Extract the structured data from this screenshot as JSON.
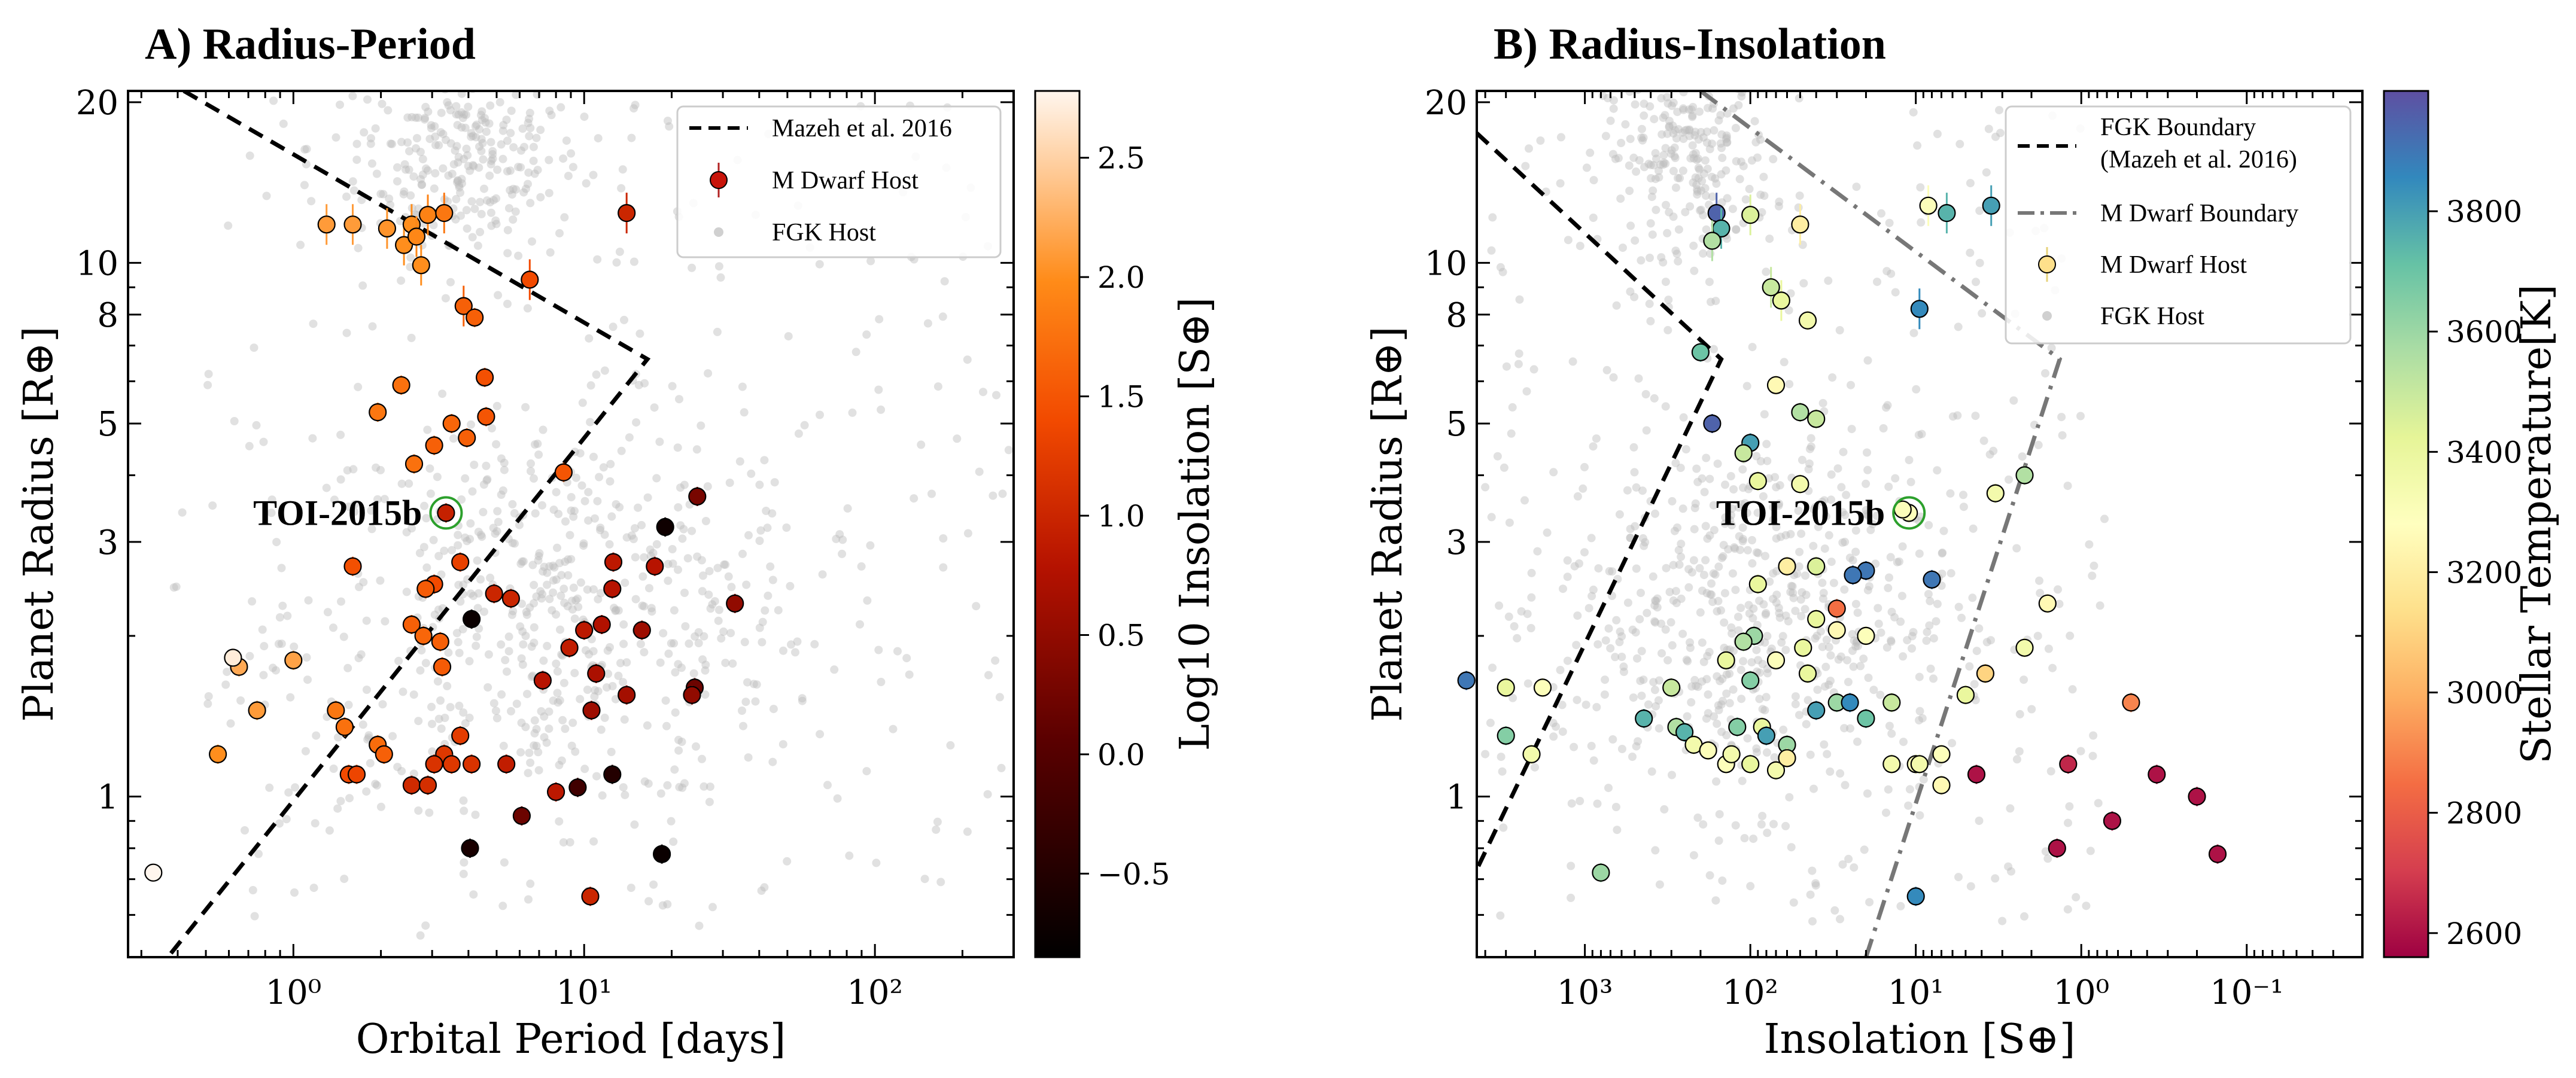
{
  "chart_data": [
    {
      "type": "scatter",
      "title": "A) Radius-Period",
      "xlabel": "Orbital Period [days]",
      "ylabel": "Planet Radius [R⊕]",
      "xscale": "log",
      "yscale": "log",
      "xlim": [
        0.27,
        300
      ],
      "ylim": [
        0.5,
        21
      ],
      "x_ticks": [
        1,
        10,
        100
      ],
      "x_tick_labels": [
        "10⁰",
        "10¹",
        "10²"
      ],
      "y_ticks": [
        1,
        3,
        5,
        8,
        10,
        20
      ],
      "y_tick_labels": [
        "1",
        "3",
        "5",
        "8",
        "10",
        "20"
      ],
      "legend_position": "top-right",
      "legend": [
        "Mazeh et al. 2016",
        "M Dwarf Host",
        "FGK Host"
      ],
      "colorbar": {
        "label": "Log10 Insolation [S⊕]",
        "ticks": [
          -0.5,
          0.0,
          0.5,
          1.0,
          1.5,
          2.0,
          2.5
        ],
        "tick_labels": [
          "−0.5",
          "0.0",
          "0.5",
          "1.0",
          "1.5",
          "2.0",
          "2.5"
        ],
        "range": [
          -0.85,
          2.78
        ],
        "colormap": "gist_heat"
      },
      "annotation": {
        "text": "TOI-2015b",
        "x": 3.35,
        "y": 3.4
      },
      "boundary": [
        [
          0.42,
          21
        ],
        [
          16.5,
          6.6
        ],
        [
          0.37,
          0.5
        ]
      ],
      "m_dwarf_points": [
        [
          1.3,
          11.8,
          2.1
        ],
        [
          1.6,
          11.8,
          2.1
        ],
        [
          2.1,
          11.6,
          2.05
        ],
        [
          2.4,
          10.8,
          2.0
        ],
        [
          2.55,
          11.8,
          2.0
        ],
        [
          2.65,
          11.2,
          1.95
        ],
        [
          2.75,
          9.9,
          2.0
        ],
        [
          2.9,
          12.3,
          1.9
        ],
        [
          3.3,
          12.4,
          1.8
        ],
        [
          6.5,
          9.3,
          1.4
        ],
        [
          14,
          12.4,
          1.0
        ],
        [
          3.85,
          8.3,
          1.6
        ],
        [
          4.2,
          7.9,
          1.6
        ],
        [
          2.35,
          5.9,
          1.75
        ],
        [
          1.95,
          5.25,
          1.8
        ],
        [
          3.5,
          5.0,
          1.65
        ],
        [
          3.05,
          4.55,
          1.6
        ],
        [
          3.95,
          4.7,
          1.6
        ],
        [
          4.55,
          6.1,
          1.45
        ],
        [
          4.6,
          5.15,
          1.5
        ],
        [
          2.6,
          4.2,
          1.75
        ],
        [
          8.5,
          4.05,
          1.5
        ],
        [
          3.35,
          3.4,
          0.95
        ],
        [
          3.75,
          2.75,
          1.3
        ],
        [
          1.6,
          2.7,
          1.45
        ],
        [
          3.05,
          2.5,
          1.4
        ],
        [
          4.1,
          2.15,
          -0.75
        ],
        [
          2.85,
          2.45,
          1.55
        ],
        [
          2.55,
          2.1,
          1.6
        ],
        [
          2.8,
          2.0,
          1.65
        ],
        [
          3.2,
          1.95,
          1.6
        ],
        [
          3.25,
          1.75,
          1.55
        ],
        [
          4.9,
          2.4,
          1.0
        ],
        [
          5.6,
          2.35,
          1.0
        ],
        [
          8.9,
          1.9,
          0.9
        ],
        [
          7.2,
          1.65,
          0.8
        ],
        [
          10,
          2.05,
          0.85
        ],
        [
          12.5,
          2.45,
          0.8
        ],
        [
          11.5,
          2.1,
          0.75
        ],
        [
          12.6,
          2.75,
          0.85
        ],
        [
          17.5,
          2.7,
          0.8
        ],
        [
          19,
          3.2,
          -0.7
        ],
        [
          24.5,
          3.65,
          0.3
        ],
        [
          33,
          2.3,
          0.5
        ],
        [
          15.8,
          2.05,
          0.6
        ],
        [
          11,
          1.7,
          0.7
        ],
        [
          14,
          1.55,
          0.65
        ],
        [
          10.6,
          1.45,
          0.6
        ],
        [
          24,
          1.6,
          0.2
        ],
        [
          23.5,
          1.55,
          0.5
        ],
        [
          0.65,
          1.75,
          2.2
        ],
        [
          0.75,
          1.45,
          2.1
        ],
        [
          0.55,
          1.2,
          2.0
        ],
        [
          1.0,
          1.8,
          2.15
        ],
        [
          1.4,
          1.45,
          1.8
        ],
        [
          1.5,
          1.35,
          1.75
        ],
        [
          1.95,
          1.25,
          1.7
        ],
        [
          2.05,
          1.2,
          1.6
        ],
        [
          1.55,
          1.1,
          1.4
        ],
        [
          1.65,
          1.1,
          1.35
        ],
        [
          2.55,
          1.05,
          1.05
        ],
        [
          2.9,
          1.05,
          1.1
        ],
        [
          3.3,
          1.2,
          1.2
        ],
        [
          3.05,
          1.15,
          1.15
        ],
        [
          3.5,
          1.15,
          1.2
        ],
        [
          4.1,
          1.15,
          1.15
        ],
        [
          3.75,
          1.3,
          1.25
        ],
        [
          5.4,
          1.15,
          0.9
        ],
        [
          4.05,
          0.8,
          -0.6
        ],
        [
          6.1,
          0.92,
          0.2
        ],
        [
          8,
          1.02,
          0.85
        ],
        [
          9.5,
          1.04,
          -0.2
        ],
        [
          12.5,
          1.1,
          -0.5
        ],
        [
          18.5,
          0.78,
          -0.75
        ],
        [
          10.5,
          0.65,
          1.0
        ],
        [
          0.33,
          0.72,
          2.78
        ],
        [
          0.62,
          1.82,
          2.7
        ]
      ],
      "fgk_points_note": "light grey background points"
    },
    {
      "type": "scatter",
      "title": "B) Radius-Insolation",
      "xlabel": "Insolation [S⊕]",
      "ylabel": "Planet Radius [R⊕]",
      "xscale": "log",
      "x_inverted": true,
      "yscale": "log",
      "xlim": [
        4500,
        0.02
      ],
      "ylim": [
        0.5,
        21
      ],
      "x_ticks": [
        1000,
        100,
        10,
        1,
        0.1
      ],
      "x_tick_labels": [
        "10³",
        "10²",
        "10¹",
        "10⁰",
        "10⁻¹"
      ],
      "y_ticks": [
        1,
        3,
        5,
        8,
        10,
        20
      ],
      "y_tick_labels": [
        "1",
        "3",
        "5",
        "8",
        "10",
        "20"
      ],
      "legend_position": "top-right",
      "legend": [
        "FGK Boundary",
        "(Mazeh et al. 2016)",
        "M Dwarf Boundary",
        "M Dwarf Host",
        "FGK Host"
      ],
      "colorbar": {
        "label": "Stellar Temperature[K]",
        "ticks": [
          2600,
          2800,
          3000,
          3200,
          3400,
          3600,
          3800
        ],
        "tick_labels": [
          "2600",
          "2800",
          "3000",
          "3200",
          "3400",
          "3600",
          "3800"
        ],
        "range": [
          2560,
          4000
        ],
        "colormap": "Spectral"
      },
      "annotation": {
        "text": "TOI-2015b",
        "x": 11,
        "y": 3.4
      },
      "fgk_boundary": [
        [
          4500,
          17.5
        ],
        [
          150,
          6.6
        ],
        [
          4500,
          0.73
        ]
      ],
      "m_dwarf_boundary": [
        [
          200,
          21
        ],
        [
          1.35,
          6.6
        ],
        [
          20,
          0.5
        ]
      ],
      "m_dwarf_points": [
        [
          160,
          12.4,
          3950
        ],
        [
          150,
          11.6,
          3750
        ],
        [
          170,
          11,
          3550
        ],
        [
          100,
          12.3,
          3450
        ],
        [
          65,
          8.5,
          3400
        ],
        [
          75,
          9,
          3500
        ],
        [
          50,
          11.8,
          3200
        ],
        [
          6.5,
          12.4,
          3750
        ],
        [
          3.5,
          12.8,
          3800
        ],
        [
          8.4,
          12.8,
          3300
        ],
        [
          45,
          7.8,
          3350
        ],
        [
          9.5,
          8.2,
          3850
        ],
        [
          200,
          6.8,
          3700
        ],
        [
          70,
          5.9,
          3250
        ],
        [
          170,
          5.0,
          3950
        ],
        [
          50,
          5.25,
          3550
        ],
        [
          40,
          5.1,
          3500
        ],
        [
          100,
          4.6,
          3800
        ],
        [
          110,
          4.4,
          3500
        ],
        [
          90,
          3.9,
          3400
        ],
        [
          50,
          3.85,
          3350
        ],
        [
          2.2,
          4.0,
          3550
        ],
        [
          3.3,
          3.7,
          3350
        ],
        [
          11,
          3.4,
          3300
        ],
        [
          12,
          3.45,
          3300
        ],
        [
          20,
          2.65,
          3900
        ],
        [
          24,
          2.6,
          3900
        ],
        [
          8,
          2.55,
          3900
        ],
        [
          40,
          2.7,
          3450
        ],
        [
          60,
          2.7,
          3200
        ],
        [
          90,
          2.5,
          3400
        ],
        [
          30,
          2.25,
          2850
        ],
        [
          40,
          2.15,
          3400
        ],
        [
          30,
          2.05,
          3250
        ],
        [
          20,
          2.0,
          3300
        ],
        [
          48,
          1.9,
          3400
        ],
        [
          95,
          2.0,
          3600
        ],
        [
          110,
          1.95,
          3550
        ],
        [
          140,
          1.8,
          3400
        ],
        [
          70,
          1.8,
          3300
        ],
        [
          100,
          1.65,
          3650
        ],
        [
          45,
          1.7,
          3400
        ],
        [
          1.6,
          2.3,
          3250
        ],
        [
          2.2,
          1.9,
          3350
        ],
        [
          3.8,
          1.7,
          3100
        ],
        [
          5200,
          1.65,
          3900
        ],
        [
          3000,
          1.6,
          3400
        ],
        [
          1800,
          1.6,
          3300
        ],
        [
          3000,
          1.3,
          3650
        ],
        [
          2100,
          1.2,
          3350
        ],
        [
          300,
          1.6,
          3500
        ],
        [
          440,
          1.4,
          3750
        ],
        [
          280,
          1.35,
          3550
        ],
        [
          250,
          1.32,
          3750
        ],
        [
          220,
          1.25,
          3350
        ],
        [
          180,
          1.22,
          3300
        ],
        [
          140,
          1.15,
          3300
        ],
        [
          130,
          1.2,
          3350
        ],
        [
          100,
          1.15,
          3400
        ],
        [
          70,
          1.12,
          3350
        ],
        [
          60,
          1.25,
          3600
        ],
        [
          60,
          1.18,
          3200
        ],
        [
          85,
          1.35,
          3400
        ],
        [
          80,
          1.3,
          3800
        ],
        [
          120,
          1.35,
          3650
        ],
        [
          40,
          1.45,
          3800
        ],
        [
          30,
          1.5,
          3600
        ],
        [
          25,
          1.5,
          3850
        ],
        [
          20,
          1.4,
          3700
        ],
        [
          14,
          1.5,
          3500
        ],
        [
          14,
          1.15,
          3350
        ],
        [
          10,
          1.15,
          3300
        ],
        [
          9.5,
          1.15,
          3350
        ],
        [
          7,
          1.2,
          3300
        ],
        [
          7,
          1.05,
          3250
        ],
        [
          0.5,
          1.5,
          2900
        ],
        [
          5,
          1.55,
          3400
        ],
        [
          1.2,
          1.15,
          2650
        ],
        [
          4.3,
          1.1,
          2600
        ],
        [
          0.35,
          1.1,
          2600
        ],
        [
          0.2,
          1.0,
          2600
        ],
        [
          0.15,
          0.78,
          2600
        ],
        [
          0.65,
          0.9,
          2600
        ],
        [
          1.4,
          0.8,
          2600
        ],
        [
          10,
          0.65,
          3850
        ],
        [
          800,
          0.72,
          3600
        ]
      ]
    }
  ]
}
